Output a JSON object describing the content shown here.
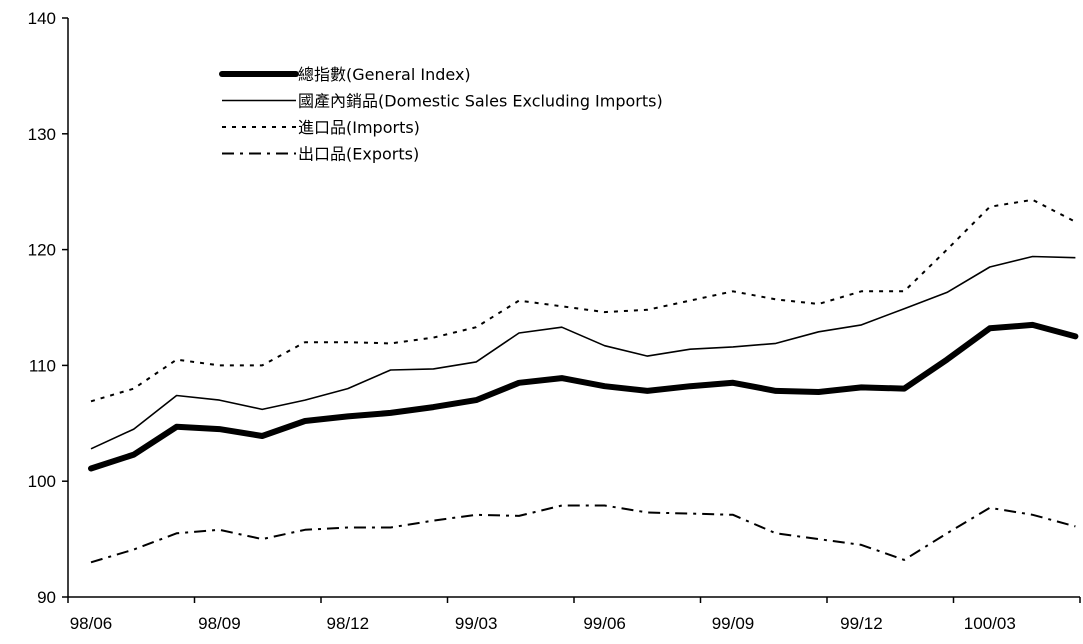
{
  "chart_data": {
    "type": "line",
    "title": "",
    "xlabel": "",
    "ylabel": "",
    "ylim": [
      90,
      140
    ],
    "y_ticks": [
      90,
      100,
      110,
      120,
      130,
      140
    ],
    "y_tick_labels": [
      "90",
      "100",
      "110",
      "120",
      "130",
      "140"
    ],
    "grid": false,
    "legend_position": "top-left",
    "x_tick_labels": [
      "98/06",
      "98/09",
      "98/12",
      "99/03",
      "99/06",
      "99/09",
      "99/12",
      "100/03"
    ],
    "x_tick_indices": [
      0,
      3,
      6,
      9,
      12,
      15,
      18,
      21
    ],
    "categories": [
      "98/06",
      "98/07",
      "98/08",
      "98/09",
      "98/10",
      "98/11",
      "98/12",
      "99/01",
      "99/02",
      "99/03",
      "99/04",
      "99/05",
      "99/06",
      "99/07",
      "99/08",
      "99/09",
      "99/10",
      "99/11",
      "99/12",
      "100/01",
      "100/02",
      "100/03",
      "100/04",
      "100/05"
    ],
    "series": [
      {
        "name": "總指數(General Index)",
        "style": "thick-solid",
        "color": "#000000",
        "values": [
          101.1,
          102.3,
          104.7,
          104.5,
          103.9,
          105.2,
          105.6,
          105.9,
          106.4,
          107.0,
          108.5,
          108.9,
          108.2,
          107.8,
          108.2,
          108.5,
          107.8,
          107.7,
          108.1,
          108.0,
          110.5,
          113.2,
          113.5,
          112.5
        ]
      },
      {
        "name": "國產內銷品(Domestic Sales Excluding Imports)",
        "style": "thin-solid",
        "color": "#000000",
        "values": [
          102.8,
          104.5,
          107.4,
          107.0,
          106.2,
          107.0,
          108.0,
          109.6,
          109.7,
          110.3,
          112.8,
          113.3,
          111.7,
          110.8,
          111.4,
          111.6,
          111.9,
          112.9,
          113.5,
          114.9,
          116.3,
          118.5,
          119.4,
          119.3
        ]
      },
      {
        "name": "進口品(Imports)",
        "style": "dotted",
        "color": "#000000",
        "values": [
          106.9,
          108.0,
          110.5,
          110.0,
          110.0,
          112.0,
          112.0,
          111.9,
          112.4,
          113.3,
          115.6,
          115.1,
          114.6,
          114.8,
          115.6,
          116.4,
          115.7,
          115.3,
          116.4,
          116.4,
          120.0,
          123.7,
          124.3,
          122.4
        ]
      },
      {
        "name": "出口品(Exports)",
        "style": "dash-dot",
        "color": "#000000",
        "values": [
          93.0,
          94.1,
          95.5,
          95.8,
          95.0,
          95.8,
          96.0,
          96.0,
          96.6,
          97.1,
          97.0,
          97.9,
          97.9,
          97.3,
          97.2,
          97.1,
          95.5,
          95.0,
          94.5,
          93.2,
          95.5,
          97.7,
          97.1,
          96.1
        ]
      }
    ]
  }
}
